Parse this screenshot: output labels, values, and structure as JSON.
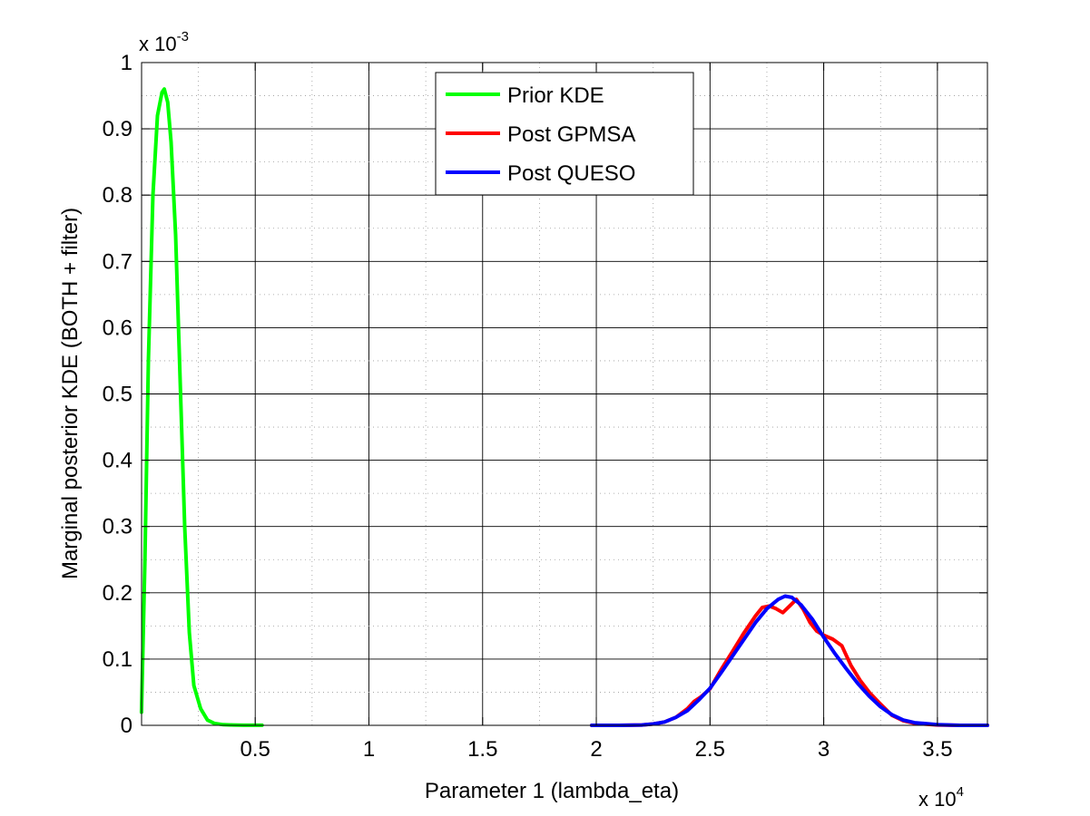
{
  "chart_data": {
    "type": "line",
    "title": "",
    "xlabel": "Parameter 1 (lambda_eta)",
    "ylabel": "Marginal posterior KDE (BOTH + filter)",
    "x_multiplier_label": {
      "base": "x 10",
      "exp": "4"
    },
    "y_multiplier_label": {
      "base": "x 10",
      "exp": "-3"
    },
    "xlim": [
      2.4,
      37200
    ],
    "ylim": [
      0,
      0.001
    ],
    "x_ticks": [
      5000,
      10000,
      15000,
      20000,
      25000,
      30000,
      35000
    ],
    "x_tick_labels": [
      "0.5",
      "1",
      "1.5",
      "2",
      "2.5",
      "3",
      "3.5"
    ],
    "y_ticks": [
      0,
      0.0001,
      0.0002,
      0.0003,
      0.0004,
      0.0005,
      0.0006,
      0.0007,
      0.0008,
      0.0009,
      0.001
    ],
    "y_tick_labels": [
      "0",
      "0.1",
      "0.2",
      "0.3",
      "0.4",
      "0.5",
      "0.6",
      "0.7",
      "0.8",
      "0.9",
      "1"
    ],
    "grid": true,
    "legend_position": "top-center",
    "series": [
      {
        "name": "Prior KDE",
        "color": "#00ff00",
        "x": [
          0,
          150,
          300,
          500,
          700,
          900,
          1000,
          1150,
          1300,
          1500,
          1700,
          1900,
          2100,
          2300,
          2600,
          2900,
          3200,
          3600,
          4000,
          4500,
          5000,
          5300
        ],
        "y": [
          2e-05,
          0.00025,
          0.00055,
          0.0008,
          0.00092,
          0.000955,
          0.00096,
          0.00094,
          0.00088,
          0.00074,
          0.00052,
          0.0003,
          0.00014,
          6e-05,
          2.5e-05,
          8e-06,
          3e-06,
          1e-06,
          5e-07,
          2e-07,
          1e-07,
          1e-07
        ]
      },
      {
        "name": "Post GPMSA",
        "color": "#ff0000",
        "x": [
          19800,
          21000,
          22000,
          22500,
          23000,
          23500,
          24000,
          24300,
          24600,
          25000,
          25500,
          26000,
          26500,
          27000,
          27300,
          27600,
          27900,
          28200,
          28500,
          28800,
          29100,
          29400,
          29700,
          30000,
          30400,
          30800,
          31200,
          31600,
          32000,
          32500,
          33000,
          33500,
          34000,
          35000,
          36000,
          37200
        ],
        "y": [
          0,
          0,
          5e-07,
          2e-06,
          5e-06,
          1.2e-05,
          2.5e-05,
          3.6e-05,
          4.3e-05,
          5.5e-05,
          8.5e-05,
          0.000112,
          0.00014,
          0.000165,
          0.000178,
          0.00018,
          0.000176,
          0.00017,
          0.00018,
          0.00019,
          0.000175,
          0.000155,
          0.000142,
          0.000136,
          0.00013,
          0.00012,
          9e-05,
          6.8e-05,
          5e-05,
          3.2e-05,
          1.5e-05,
          7e-06,
          3e-06,
          5e-07,
          0,
          0
        ]
      },
      {
        "name": "Post QUESO",
        "color": "#0000ff",
        "x": [
          19800,
          21000,
          22000,
          22500,
          23000,
          23500,
          24000,
          24500,
          25000,
          25500,
          26000,
          26500,
          27000,
          27500,
          28000,
          28300,
          28600,
          29000,
          29500,
          30000,
          30500,
          31000,
          31500,
          32000,
          32500,
          33000,
          33500,
          34000,
          35000,
          36000,
          37200
        ],
        "y": [
          0,
          0,
          5e-07,
          2e-06,
          5e-06,
          1.2e-05,
          2.2e-05,
          3.8e-05,
          5.6e-05,
          8e-05,
          0.000105,
          0.00013,
          0.000155,
          0.000176,
          0.00019,
          0.000195,
          0.000193,
          0.000182,
          0.00016,
          0.000133,
          0.000108,
          8.5e-05,
          6.3e-05,
          4.4e-05,
          2.8e-05,
          1.6e-05,
          8e-06,
          4e-06,
          1e-06,
          0,
          0
        ]
      }
    ]
  }
}
